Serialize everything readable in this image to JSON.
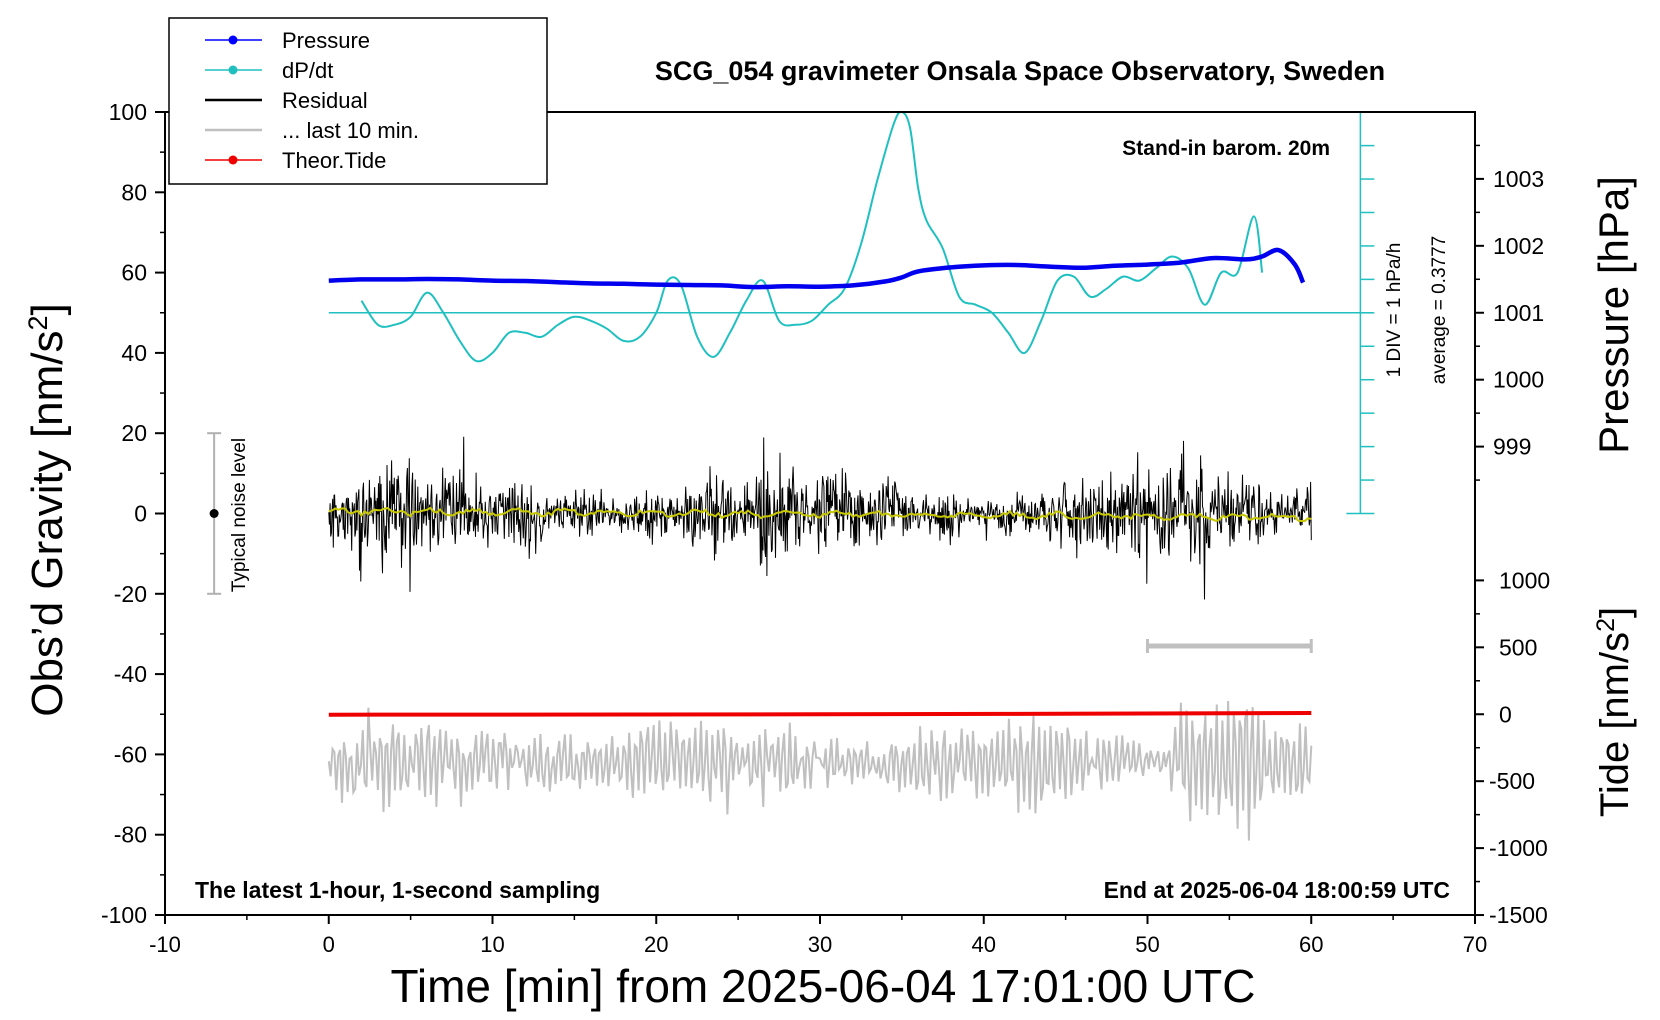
{
  "chart_data": {
    "type": "line",
    "title": "SCG_054 gravimeter Onsala Space Observatory, Sweden",
    "xlabel": "Time [min] from 2025-06-04 17:01:00 UTC",
    "ylabel": "Obs’d Gravity [nm/s²]",
    "ylabel_main": "Obs’d Gravity [nm/s",
    "ylabel_sup": "2",
    "ylabel_end": "]",
    "xlim": [
      -10,
      70
    ],
    "ylim": [
      -100,
      100
    ],
    "xticks": [
      -10,
      0,
      10,
      20,
      30,
      40,
      50,
      60,
      70
    ],
    "yticks": [
      -100,
      -80,
      -60,
      -40,
      -20,
      0,
      20,
      40,
      60,
      80,
      100
    ],
    "right_axes": {
      "pressure": {
        "label": "Pressure [hPa]",
        "ticks": [
          999,
          1000,
          1001,
          1002,
          1003
        ],
        "reference_hpa": 1001,
        "reference_gravity": 50,
        "gravity_per_hpa": 16.67
      },
      "tide": {
        "label_main": "Tide [nm/s",
        "label_sup": "2",
        "label_end": "]",
        "ticks": [
          1000,
          500,
          0,
          -500,
          -1000,
          -1500
        ],
        "tide_zero_gravity": -50,
        "gravity_per_500": 16.67
      }
    },
    "legend": {
      "position": "top-left",
      "entries": [
        {
          "label": "Pressure",
          "color": "#0000ff",
          "style": "line-dot"
        },
        {
          "label": "dP/dt",
          "color": "#20c0c0",
          "style": "line-dot"
        },
        {
          "label": "Residual",
          "color": "#000000",
          "style": "line"
        },
        {
          "label": "... last 10 min.",
          "color": "#c0c0c0",
          "style": "line"
        },
        {
          "label": "Theor.Tide",
          "color": "#ee0000",
          "style": "line-dot"
        }
      ]
    },
    "annotations": {
      "barometer": "Stand-in barom. 20m",
      "dpdt_scale": "1 DIV = 1 hPa/h",
      "dpdt_average": "average = 0.3777",
      "noise": "Typical noise level",
      "bottom_left": "The latest 1-hour, 1-second sampling",
      "bottom_right": "End at 2025-06-04 18:00:59 UTC"
    },
    "noise_bar": {
      "x": -7,
      "center": 0,
      "low": -20,
      "high": 20
    },
    "dpdt_axis": {
      "x": 63,
      "baseline": 50,
      "ymin": 0,
      "ymax": 100,
      "tick_step": 8.33
    },
    "last10_marker": {
      "x_start": 50,
      "x_end": 60,
      "y": -33
    },
    "colors": {
      "pressure": "#0000ee",
      "dpdt": "#20c0c0",
      "residual": "#000000",
      "smoothed_residual": "#c8c800",
      "last10": "#c0c0c0",
      "tide": "#ee0000"
    },
    "series": [
      {
        "name": "Pressure",
        "axis": "gravity-equivalent",
        "x": [
          0,
          2,
          4,
          6,
          8,
          10,
          12,
          14,
          16,
          18,
          20,
          22,
          24,
          26,
          28,
          30,
          32,
          34,
          35,
          36,
          38,
          40,
          42,
          44,
          46,
          48,
          50,
          52,
          54,
          56,
          57,
          58,
          59,
          59.5
        ],
        "y": [
          58,
          58.3,
          58.3,
          58.4,
          58.3,
          58,
          57.9,
          57.6,
          57.3,
          57.2,
          57,
          56.9,
          56.8,
          56.4,
          56.6,
          56.5,
          56.8,
          57.8,
          58.8,
          60.3,
          61.3,
          61.8,
          61.9,
          61.5,
          61.2,
          61.7,
          62,
          62.5,
          63.6,
          63.3,
          64,
          65.6,
          62,
          57.5
        ]
      },
      {
        "name": "dP/dt",
        "axis": "gravity-equivalent",
        "x": [
          2,
          3,
          4,
          5,
          6,
          7,
          8,
          9,
          10,
          11,
          12,
          13,
          14,
          15,
          16,
          17,
          18,
          19,
          20,
          20.7,
          21.5,
          22.5,
          23.5,
          24.5,
          25.5,
          26.5,
          27.5,
          28.5,
          29.5,
          30.5,
          31.5,
          32.5,
          33.5,
          34.5,
          35,
          35.5,
          36,
          36.5,
          37.5,
          38.5,
          39.5,
          40.5,
          41.5,
          42.5,
          43.5,
          44.5,
          45.5,
          46.5,
          47.5,
          48.5,
          49.5,
          50.5,
          51.5,
          52.5,
          53.5,
          54.5,
          55.5,
          56.5,
          57
        ],
        "y": [
          53,
          47,
          47,
          49,
          55,
          50,
          43,
          38,
          40,
          45,
          45,
          44,
          47,
          49,
          48,
          46,
          43,
          44,
          50,
          58,
          57,
          44,
          39,
          45,
          53,
          58,
          48,
          47,
          48,
          52,
          56,
          67,
          83,
          97,
          100,
          96,
          81,
          73,
          66,
          54,
          52,
          50,
          45,
          40,
          48,
          58,
          59,
          54,
          56,
          59,
          58,
          61,
          64,
          61,
          52,
          60,
          60,
          74,
          60
        ]
      },
      {
        "name": "Residual",
        "x_range": [
          0,
          60
        ],
        "y_center": 0,
        "amplitude_typical": 10,
        "amplitude_max": 26
      },
      {
        "name": "Residual smoothed",
        "x_range": [
          0,
          60
        ],
        "y_center": 0,
        "amplitude_typical": 1
      },
      {
        "name": "... last 10 min.",
        "x_range": [
          0,
          60
        ],
        "y_center": -62,
        "amplitude_typical": 8,
        "amplitude_max": 25
      },
      {
        "name": "Theor.Tide",
        "x": [
          0,
          30,
          60
        ],
        "y": [
          -50.1,
          -50.0,
          -49.7
        ]
      }
    ]
  }
}
